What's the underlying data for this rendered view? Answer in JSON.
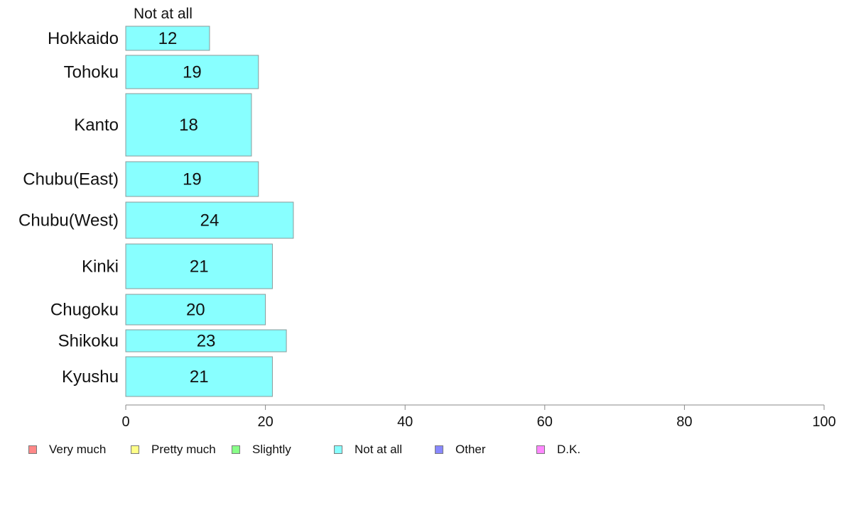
{
  "chart_data": {
    "type": "bar",
    "orientation": "horizontal",
    "series_label": "Not at all",
    "categories": [
      "Hokkaido",
      "Tohoku",
      "Kanto",
      "Chubu(East)",
      "Chubu(West)",
      "Kinki",
      "Chugoku",
      "Shikoku",
      "Kyushu"
    ],
    "values": [
      12,
      19,
      18,
      19,
      24,
      21,
      20,
      23,
      21
    ],
    "data_labels": [
      "12",
      "19",
      "18",
      "19",
      "24",
      "21",
      "20",
      "23",
      "21"
    ],
    "xlim": [
      0,
      100
    ],
    "x_ticks": [
      0,
      20,
      40,
      60,
      80,
      100
    ],
    "x_tick_labels": [
      "0",
      "20",
      "40",
      "60",
      "80",
      "100"
    ],
    "grid": false,
    "bar_color": "#88ffff",
    "legend_position": "bottom",
    "legend": [
      {
        "label": "Very much",
        "color": "#ff8888"
      },
      {
        "label": "Pretty much",
        "color": "#ffff88"
      },
      {
        "label": "Slightly",
        "color": "#88ff88"
      },
      {
        "label": "Not at all",
        "color": "#88ffff"
      },
      {
        "label": "Other",
        "color": "#8888ff"
      },
      {
        "label": "D.K.",
        "color": "#ff88ff"
      }
    ]
  }
}
